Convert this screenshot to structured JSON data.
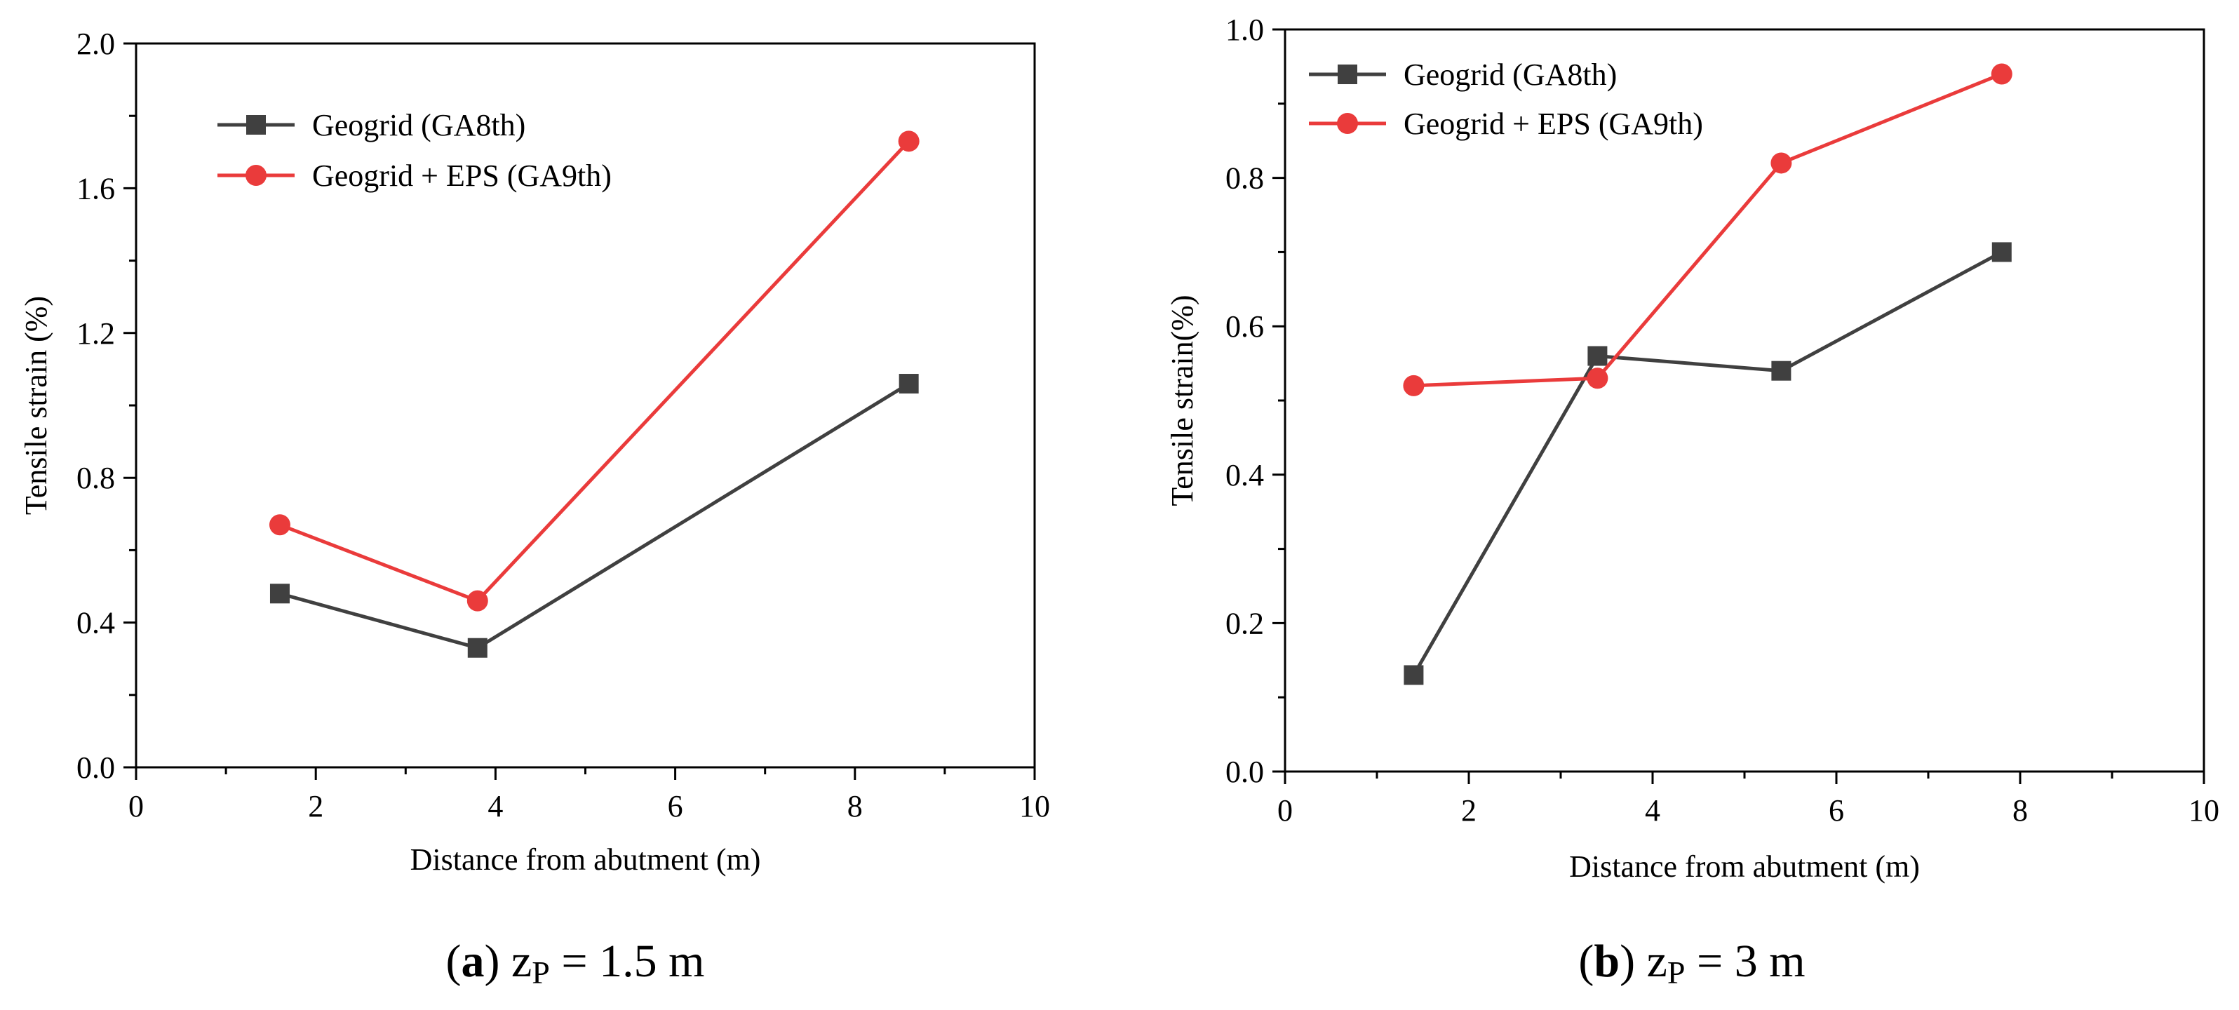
{
  "chart_data": [
    {
      "type": "line",
      "title": "",
      "xlabel": "Distance from abutment (m)",
      "ylabel": "Tensile strain (%)",
      "xlim": [
        0,
        10
      ],
      "ylim": [
        0,
        2.0
      ],
      "x_ticks": [
        0,
        2,
        4,
        6,
        8,
        10
      ],
      "x_tick_labels": [
        "0",
        "2",
        "4",
        "6",
        "8",
        "10"
      ],
      "y_ticks": [
        0,
        0.4,
        0.8,
        1.2,
        1.6,
        2.0
      ],
      "y_tick_labels": [
        "0.0",
        "0.4",
        "0.8",
        "1.2",
        "1.6",
        "2.0"
      ],
      "legend_position": "top-left",
      "caption": {
        "letter": "a",
        "text": "z",
        "subscript": "P",
        "rest": " = 1.5 m"
      },
      "series": [
        {
          "name": "Geogrid (GA8th)",
          "color": "#404040",
          "marker": "square",
          "x": [
            1.6,
            3.8,
            8.6
          ],
          "y": [
            0.48,
            0.33,
            1.06
          ]
        },
        {
          "name": "Geogrid + EPS (GA9th)",
          "color": "#ea3b3b",
          "marker": "circle",
          "x": [
            1.6,
            3.8,
            8.6
          ],
          "y": [
            0.67,
            0.46,
            1.73
          ]
        }
      ]
    },
    {
      "type": "line",
      "title": "",
      "xlabel": "Distance from abutment (m)",
      "ylabel": "Tensile strain(%)",
      "xlim": [
        0,
        10
      ],
      "ylim": [
        0,
        1.0
      ],
      "x_ticks": [
        0,
        2,
        4,
        6,
        8,
        10
      ],
      "x_tick_labels": [
        "0",
        "2",
        "4",
        "6",
        "8",
        "10"
      ],
      "y_ticks": [
        0,
        0.2,
        0.4,
        0.6,
        0.8,
        1.0
      ],
      "y_tick_labels": [
        "0.0",
        "0.2",
        "0.4",
        "0.6",
        "0.8",
        "1.0"
      ],
      "legend_position": "top-left",
      "caption": {
        "letter": "b",
        "text": "z",
        "subscript": "P",
        "rest": " = 3 m"
      },
      "series": [
        {
          "name": "Geogrid (GA8th)",
          "color": "#404040",
          "marker": "square",
          "x": [
            1.4,
            3.4,
            5.4,
            7.8
          ],
          "y": [
            0.13,
            0.56,
            0.54,
            0.7
          ]
        },
        {
          "name": "Geogrid + EPS (GA9th)",
          "color": "#ea3b3b",
          "marker": "circle",
          "x": [
            1.4,
            3.4,
            5.4,
            7.8
          ],
          "y": [
            0.52,
            0.53,
            0.82,
            0.94
          ]
        }
      ]
    }
  ]
}
